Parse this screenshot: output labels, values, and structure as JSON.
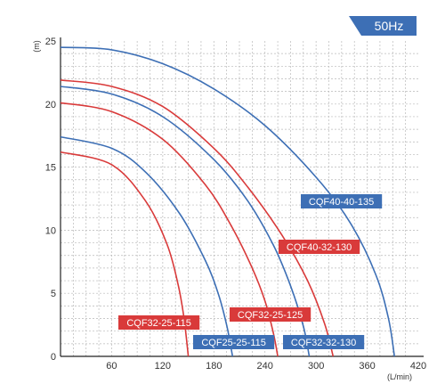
{
  "frequency_badge": "50Hz",
  "chart_data": {
    "type": "line",
    "ylabel": "(m)",
    "xlabel": "(L/min)",
    "xlim": [
      0,
      420
    ],
    "ylim": [
      0,
      25
    ],
    "x_ticks": [
      60,
      120,
      180,
      240,
      300,
      360,
      420
    ],
    "y_ticks": [
      0,
      5,
      10,
      15,
      20,
      25
    ],
    "grid": true,
    "colors": {
      "red": "#d93a3a",
      "blue": "#3d6fb5",
      "badge": "#3d6fb5"
    },
    "series": [
      {
        "name": "CQF40-40-135",
        "color": "#3d6fb5",
        "x": [
          0,
          60,
          120,
          180,
          240,
          300,
          340,
          370,
          385,
          392
        ],
        "y": [
          24.5,
          24.3,
          23.2,
          21.2,
          18.3,
          14.2,
          10.6,
          6.5,
          3.0,
          0
        ]
      },
      {
        "name": "CQF40-32-130",
        "color": "#d93a3a",
        "x": [
          0,
          60,
          120,
          180,
          220,
          260,
          290,
          310,
          320
        ],
        "y": [
          21.9,
          21.4,
          19.8,
          16.5,
          13.4,
          9.6,
          6.0,
          2.6,
          0
        ]
      },
      {
        "name": "CQF32-32-130",
        "color": "#3d6fb5",
        "x": [
          0,
          60,
          120,
          180,
          220,
          250,
          270,
          285,
          292
        ],
        "y": [
          21.4,
          20.8,
          19.0,
          15.6,
          12.3,
          8.8,
          5.6,
          2.4,
          0
        ]
      },
      {
        "name": "CQF32-25-125",
        "color": "#d93a3a",
        "x": [
          0,
          60,
          120,
          170,
          200,
          225,
          240,
          250,
          255
        ],
        "y": [
          20.1,
          19.4,
          17.2,
          13.6,
          10.4,
          7.0,
          4.4,
          1.8,
          0
        ]
      },
      {
        "name": "CQF25-25-115",
        "color": "#3d6fb5",
        "x": [
          0,
          60,
          100,
          140,
          170,
          185,
          195,
          202
        ],
        "y": [
          17.4,
          16.5,
          14.6,
          11.3,
          7.6,
          5.0,
          2.5,
          0
        ]
      },
      {
        "name": "CQF32-25-115",
        "color": "#d93a3a",
        "x": [
          0,
          60,
          100,
          125,
          138,
          145,
          150
        ],
        "y": [
          16.2,
          15.2,
          12.3,
          8.9,
          5.7,
          3.0,
          0
        ]
      }
    ]
  }
}
